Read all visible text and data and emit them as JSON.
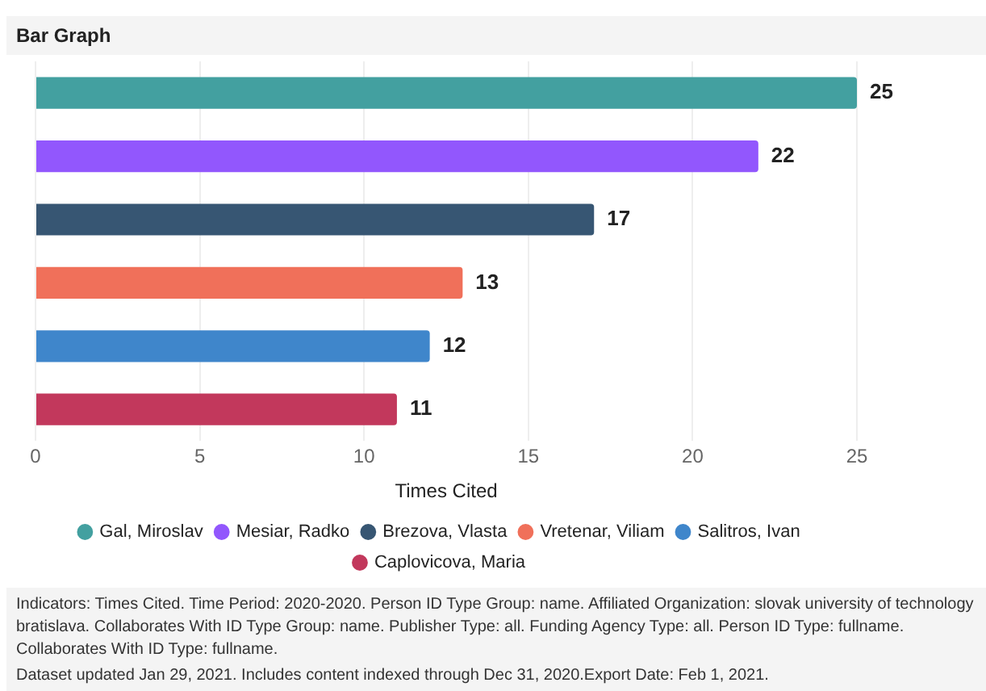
{
  "chart_data": {
    "type": "bar",
    "orientation": "horizontal",
    "title": "Bar Graph",
    "xlabel": "Times Cited",
    "categories": [
      null,
      null,
      null,
      null,
      null,
      null
    ],
    "series": [
      {
        "name": "Gal, Miroslav",
        "color": "#43a0a0",
        "values": [
          25,
          null,
          null,
          null,
          null,
          null
        ]
      },
      {
        "name": "Mesiar, Radko",
        "color": "#9257fd",
        "values": [
          null,
          22,
          null,
          null,
          null,
          null
        ]
      },
      {
        "name": "Brezova, Vlasta",
        "color": "#375673",
        "values": [
          null,
          null,
          17,
          null,
          null,
          null
        ]
      },
      {
        "name": "Vretenar, Viliam",
        "color": "#f0705a",
        "values": [
          null,
          null,
          null,
          13,
          null,
          null
        ]
      },
      {
        "name": "Salitros, Ivan",
        "color": "#3f86cb",
        "values": [
          null,
          null,
          null,
          null,
          12,
          null
        ]
      },
      {
        "name": "Caplovicova, Maria",
        "color": "#c2385c",
        "values": [
          null,
          null,
          null,
          null,
          null,
          11
        ]
      }
    ],
    "xlim": [
      0,
      25
    ],
    "xticks": [
      0,
      5,
      10,
      15,
      20,
      25
    ],
    "grid": "x",
    "legend": "bottom",
    "tick_labels": "x",
    "data_labels": true,
    "annotations": [
      "Indicators:  Times Cited.  Time Period:  2020-2020.  Person ID Type Group:  name.  Affiliated Organization:  slovak university of technology bratislava.  Collaborates With ID Type Group:  name.  Publisher Type:  all.  Funding Agency Type:  all.  Person ID Type:  fullname.  Collaborates With ID Type:  fullname.",
      "Dataset updated Jan 29, 2021. Includes content indexed through Dec 31, 2020.Export Date: Feb 1, 2021."
    ]
  }
}
